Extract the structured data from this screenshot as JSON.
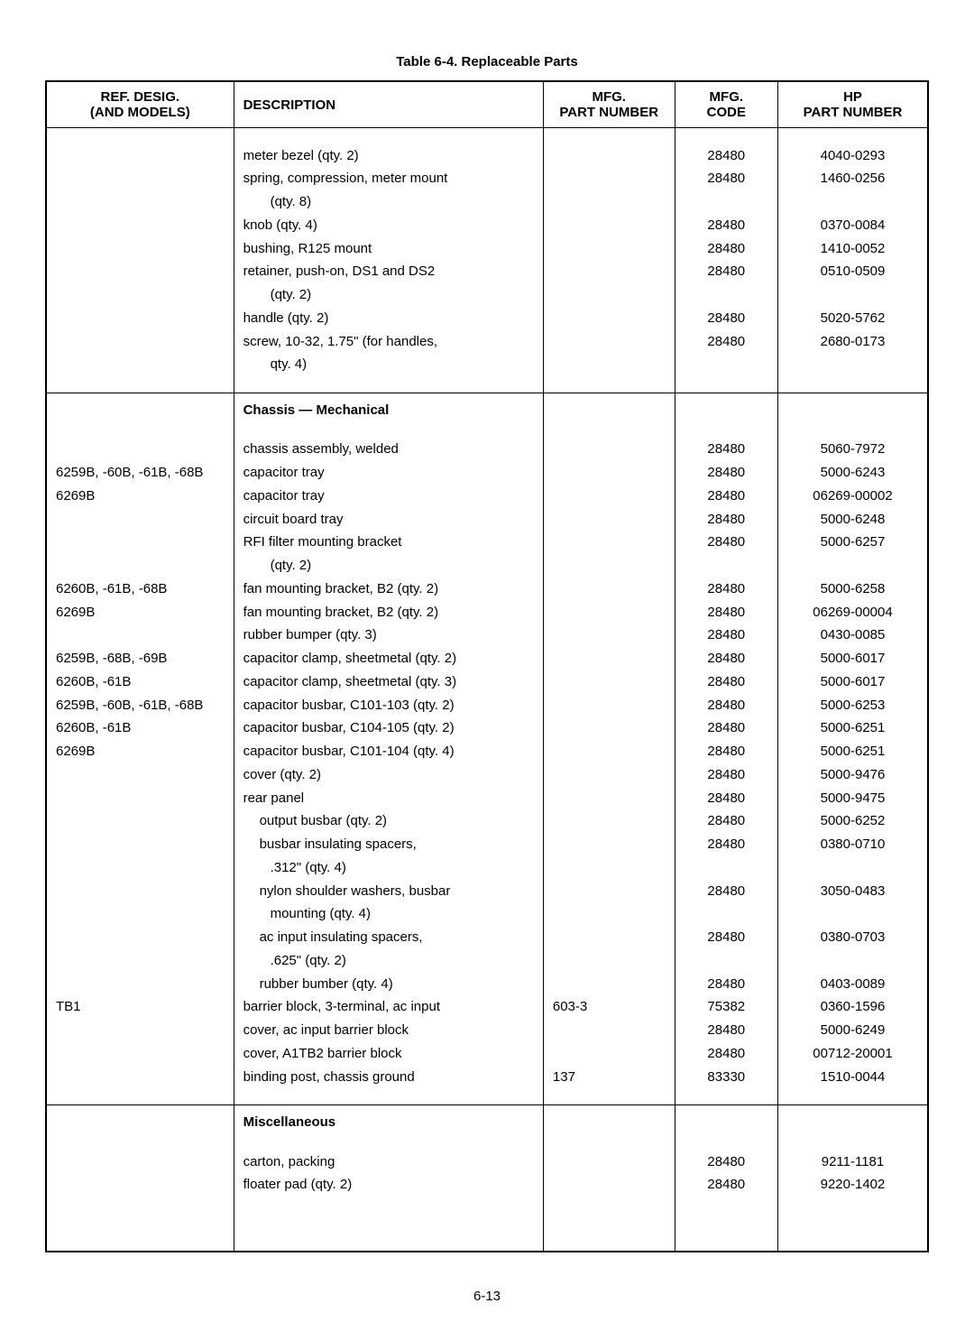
{
  "title": "Table 6-4.  Replaceable Parts",
  "footer": "6-13",
  "columns": {
    "ref1": "REF. DESIG.",
    "ref2": "(AND MODELS)",
    "desc": "DESCRIPTION",
    "mpn1": "MFG.",
    "mpn2": "PART NUMBER",
    "code1": "MFG.",
    "code2": "CODE",
    "hp1": "HP",
    "hp2": "PART NUMBER"
  },
  "s1": [
    {
      "ref": "",
      "desc": "meter bezel (qty. 2)",
      "mpn": "",
      "code": "28480",
      "hp": "4040-0293"
    },
    {
      "ref": "",
      "desc": "spring, compression, meter mount",
      "mpn": "",
      "code": "28480",
      "hp": "1460-0256"
    },
    {
      "ref": "",
      "desc": "(qty. 8)",
      "indent": 1,
      "mpn": "",
      "code": "",
      "hp": ""
    },
    {
      "ref": "",
      "desc": "knob (qty. 4)",
      "mpn": "",
      "code": "28480",
      "hp": "0370-0084"
    },
    {
      "ref": "",
      "desc": "bushing, R125 mount",
      "mpn": "",
      "code": "28480",
      "hp": "1410-0052"
    },
    {
      "ref": "",
      "desc": "retainer, push-on, DS1 and DS2",
      "mpn": "",
      "code": "28480",
      "hp": "0510-0509"
    },
    {
      "ref": "",
      "desc": "(qty. 2)",
      "indent": 1,
      "mpn": "",
      "code": "",
      "hp": ""
    },
    {
      "ref": "",
      "desc": "handle (qty. 2)",
      "mpn": "",
      "code": "28480",
      "hp": "5020-5762"
    },
    {
      "ref": "",
      "desc": "screw, 10-32, 1.75\" (for handles,",
      "mpn": "",
      "code": "28480",
      "hp": "2680-0173"
    },
    {
      "ref": "",
      "desc": "qty. 4)",
      "indent": 1,
      "mpn": "",
      "code": "",
      "hp": ""
    }
  ],
  "s2header": "Chassis — Mechanical",
  "s2": [
    {
      "ref": "",
      "desc": "chassis assembly, welded",
      "mpn": "",
      "code": "28480",
      "hp": "5060-7972"
    },
    {
      "ref": "6259B, -60B, -61B, -68B",
      "desc": "capacitor tray",
      "mpn": "",
      "code": "28480",
      "hp": "5000-6243"
    },
    {
      "ref": "6269B",
      "desc": "capacitor tray",
      "mpn": "",
      "code": "28480",
      "hp": "06269-00002"
    },
    {
      "ref": "",
      "desc": "circuit board tray",
      "mpn": "",
      "code": "28480",
      "hp": "5000-6248"
    },
    {
      "ref": "",
      "desc": "RFI filter mounting bracket",
      "mpn": "",
      "code": "28480",
      "hp": "5000-6257"
    },
    {
      "ref": "",
      "desc": "(qty. 2)",
      "indent": 1,
      "mpn": "",
      "code": "",
      "hp": ""
    },
    {
      "ref": "6260B, -61B, -68B",
      "desc": "fan mounting bracket, B2 (qty. 2)",
      "mpn": "",
      "code": "28480",
      "hp": "5000-6258"
    },
    {
      "ref": "6269B",
      "desc": "fan mounting bracket, B2 (qty. 2)",
      "mpn": "",
      "code": "28480",
      "hp": "06269-00004"
    },
    {
      "ref": "",
      "desc": "rubber bumper (qty. 3)",
      "mpn": "",
      "code": "28480",
      "hp": "0430-0085"
    },
    {
      "ref": "6259B, -68B, -69B",
      "desc": "capacitor clamp, sheetmetal (qty. 2)",
      "mpn": "",
      "code": "28480",
      "hp": "5000-6017"
    },
    {
      "ref": "6260B, -61B",
      "desc": "capacitor clamp, sheetmetal (qty. 3)",
      "mpn": "",
      "code": "28480",
      "hp": "5000-6017"
    },
    {
      "ref": "6259B, -60B, -61B, -68B",
      "desc": "capacitor busbar, C101-103 (qty. 2)",
      "mpn": "",
      "code": "28480",
      "hp": "5000-6253"
    },
    {
      "ref": "6260B, -61B",
      "desc": "capacitor busbar, C104-105 (qty. 2)",
      "mpn": "",
      "code": "28480",
      "hp": "5000-6251"
    },
    {
      "ref": "6269B",
      "desc": "capacitor busbar, C101-104 (qty. 4)",
      "mpn": "",
      "code": "28480",
      "hp": "5000-6251"
    },
    {
      "ref": "",
      "desc": "cover (qty. 2)",
      "mpn": "",
      "code": "28480",
      "hp": "5000-9476"
    },
    {
      "ref": "",
      "desc": "rear panel",
      "mpn": "",
      "code": "28480",
      "hp": "5000-9475"
    },
    {
      "ref": "",
      "desc": "output busbar (qty. 2)",
      "indent": 2,
      "mpn": "",
      "code": "28480",
      "hp": "5000-6252"
    },
    {
      "ref": "",
      "desc": "busbar insulating spacers,",
      "indent": 2,
      "mpn": "",
      "code": "28480",
      "hp": "0380-0710"
    },
    {
      "ref": "",
      "desc": ".312\" (qty. 4)",
      "indent": 1,
      "mpn": "",
      "code": "",
      "hp": ""
    },
    {
      "ref": "",
      "desc": "nylon shoulder washers, busbar",
      "indent": 2,
      "mpn": "",
      "code": "28480",
      "hp": "3050-0483"
    },
    {
      "ref": "",
      "desc": "mounting (qty. 4)",
      "indent": 1,
      "mpn": "",
      "code": "",
      "hp": ""
    },
    {
      "ref": "",
      "desc": "ac input insulating spacers,",
      "indent": 2,
      "mpn": "",
      "code": "28480",
      "hp": "0380-0703"
    },
    {
      "ref": "",
      "desc": ".625\" (qty. 2)",
      "indent": 1,
      "mpn": "",
      "code": "",
      "hp": ""
    },
    {
      "ref": "",
      "desc": "rubber bumber (qty. 4)",
      "indent": 2,
      "mpn": "",
      "code": "28480",
      "hp": "0403-0089"
    },
    {
      "ref": "TB1",
      "desc": "barrier block, 3-terminal, ac input",
      "mpn": "603-3",
      "code": "75382",
      "hp": "0360-1596"
    },
    {
      "ref": "",
      "desc": "cover, ac input barrier block",
      "mpn": "",
      "code": "28480",
      "hp": "5000-6249"
    },
    {
      "ref": "",
      "desc": "cover, A1TB2 barrier block",
      "mpn": "",
      "code": "28480",
      "hp": "00712-20001"
    },
    {
      "ref": "",
      "desc": "binding post, chassis  ground",
      "mpn": "137",
      "code": "83330",
      "hp": "1510-0044"
    }
  ],
  "s3header": "Miscellaneous",
  "s3": [
    {
      "ref": "",
      "desc": "carton, packing",
      "mpn": "",
      "code": "28480",
      "hp": "9211-1181"
    },
    {
      "ref": "",
      "desc": "floater pad (qty. 2)",
      "mpn": "",
      "code": "28480",
      "hp": "9220-1402"
    }
  ]
}
